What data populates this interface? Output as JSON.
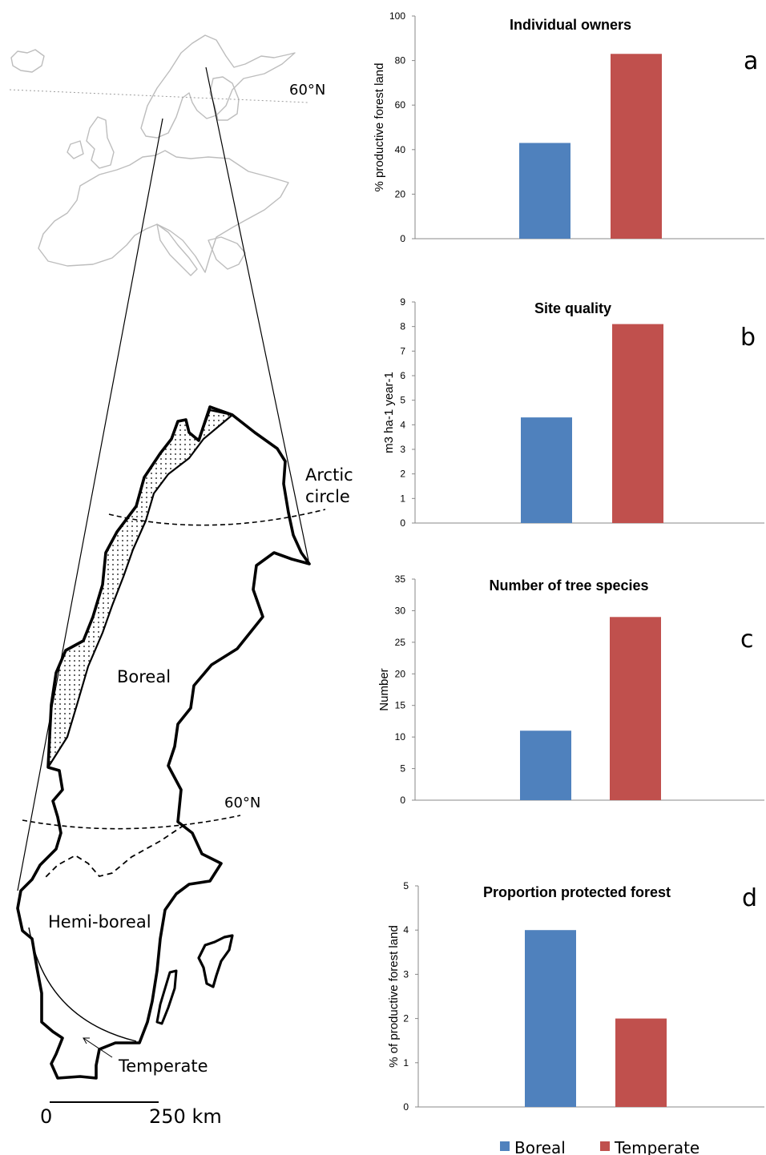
{
  "map": {
    "europe_lat_label": "60°N",
    "arctic_label_line1": "Arctic",
    "arctic_label_line2": "circle",
    "sweden_lat_label": "60°N",
    "region_boreal": "Boreal",
    "region_hemiboreal": "Hemi-boreal",
    "region_temperate": "Temperate",
    "scale_start": "0",
    "scale_end": "250 km"
  },
  "legend": {
    "items": [
      {
        "label": "Boreal",
        "color": "#4f81bd"
      },
      {
        "label": "Temperate",
        "color": "#c0504d"
      }
    ]
  },
  "chart_data": [
    {
      "type": "bar",
      "letter": "a",
      "title": "Individual owners",
      "ylabel": "% productive forest land",
      "ylim": [
        0,
        100
      ],
      "yticks": [
        0,
        20,
        40,
        60,
        80,
        100
      ],
      "categories": [
        "Boreal",
        "Temperate"
      ],
      "values": [
        43,
        83
      ],
      "colors": [
        "#4f81bd",
        "#c0504d"
      ]
    },
    {
      "type": "bar",
      "letter": "b",
      "title": "Site quality",
      "ylabel": "m3 ha-1 year-1",
      "ylim": [
        0,
        9
      ],
      "yticks": [
        0,
        1,
        2,
        3,
        4,
        5,
        6,
        7,
        8,
        9
      ],
      "categories": [
        "Boreal",
        "Temperate"
      ],
      "values": [
        4.3,
        8.1
      ],
      "colors": [
        "#4f81bd",
        "#c0504d"
      ]
    },
    {
      "type": "bar",
      "letter": "c",
      "title": "Number of tree species",
      "ylabel": "Number",
      "ylim": [
        0,
        35
      ],
      "yticks": [
        0,
        5,
        10,
        15,
        20,
        25,
        30,
        35
      ],
      "categories": [
        "Boreal",
        "Temperate"
      ],
      "values": [
        11,
        29
      ],
      "colors": [
        "#4f81bd",
        "#c0504d"
      ]
    },
    {
      "type": "bar",
      "letter": "d",
      "title": "Proportion protected forest",
      "ylabel": "% of productive forest land",
      "ylim": [
        0,
        5
      ],
      "yticks": [
        0,
        1,
        2,
        3,
        4,
        5
      ],
      "categories": [
        "Boreal",
        "Temperate"
      ],
      "values": [
        4,
        2
      ],
      "colors": [
        "#4f81bd",
        "#c0504d"
      ]
    }
  ]
}
